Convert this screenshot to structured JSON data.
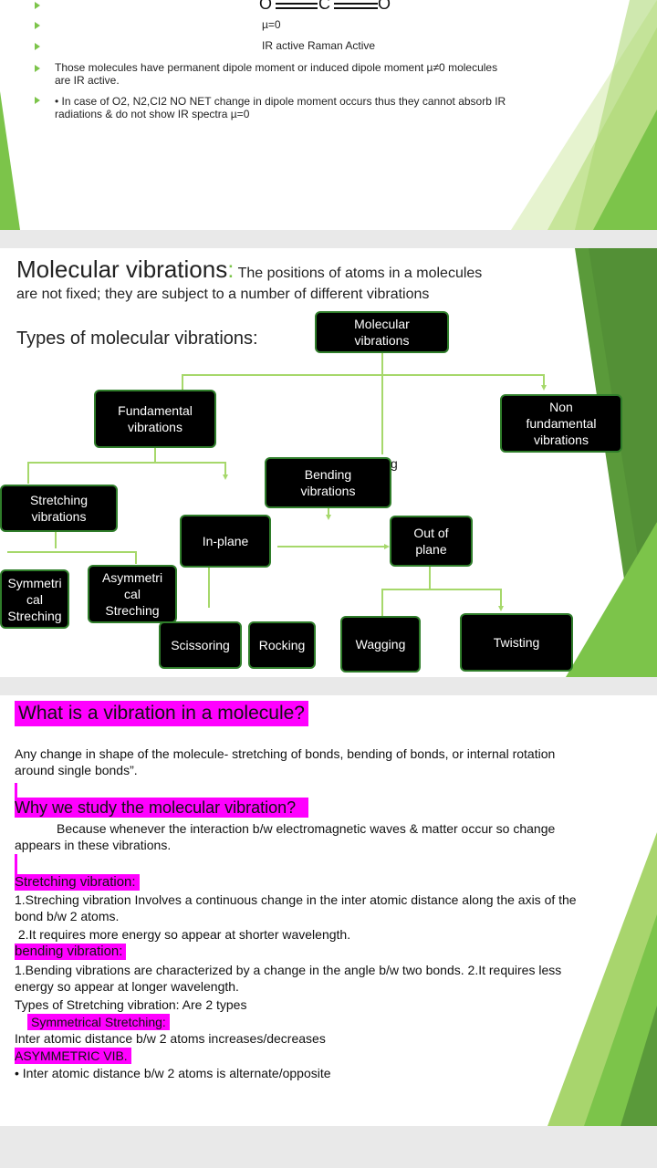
{
  "slide1": {
    "molecule": {
      "o_left": "O",
      "c": "C",
      "o_right": "O",
      "dipole": "µ=0",
      "activity": "IR active Raman Active"
    },
    "bullet1": [
      "Those molecules have permanent dipole moment or induced dipole moment µ≠0 molecules",
      "are IR active."
    ],
    "bullet2": [
      "• In case of O2, N2,CI2 NO NET change in dipole moment occurs thus they cannot absorb IR",
      "radiations & do not show IR spectra µ=0"
    ]
  },
  "slide2": {
    "title_main": "Molecular vibrations",
    "title_colon": ":",
    "title_rest_1": " The positions of atoms in a molecules",
    "title_rest_2": "are not fixed; they are subject to a number of different vibrations",
    "types_label": "Types of molecular vibrations:",
    "boxes": {
      "molecular": "Molecular\nvibrations",
      "fundamental": "Fundamental\nvibrations",
      "non_fundamental": "Non\nfundamental\nvibrations",
      "bending": "Bending\nvibrations",
      "stretching": "Stretching\nvibrations",
      "in_plane": "In-plane",
      "out_of_plane": "Out of\nplane",
      "symmetrical": "Symmetri\ncal\nStreching",
      "asymmetrical": "Asymmetri\ncal\nStreching",
      "scissoring": "Scissoring",
      "rocking": "Rocking",
      "wagging": "Wagging",
      "twisting": "Twisting"
    },
    "stray_glyph": "g"
  },
  "slide3": {
    "heading1": "What is a vibration in a molecule?",
    "para1": [
      "Any change in shape of the molecule- stretching of bonds, bending of bonds, or internal rotation",
      "around single bonds”."
    ],
    "heading2": "Why we study the molecular vibration?",
    "para2": [
      "Because whenever the interaction b/w electromagnetic waves & matter occur so  change",
      "appears in these vibrations."
    ],
    "heading3": "Stretching vibration:",
    "para3": [
      "1.Streching vibration Involves a continuous change in the inter atomic distance along the axis of the",
      "bond b/w 2 atoms.",
      " 2.It requires more energy so appear at shorter wavelength."
    ],
    "heading4": "bending vibration:",
    "para4": [
      "1.Bending vibrations are characterized by a change in the angle b/w two bonds. 2.It requires less",
      "energy so appear at longer wavelength.",
      "Types of Stretching vibration: Are 2 types"
    ],
    "heading5": "Symmetrical Stretching:",
    "para5": "Inter atomic distance b/w 2 atoms increases/decreases",
    "heading6": "ASYMMETRIC VIB.",
    "para6": "• Inter atomic distance b/w 2 atoms is alternate/opposite"
  },
  "colors": {
    "accent_green": "#7cc44a",
    "highlight_magenta": "#ff00ff",
    "box_border": "#2f7d2a"
  }
}
